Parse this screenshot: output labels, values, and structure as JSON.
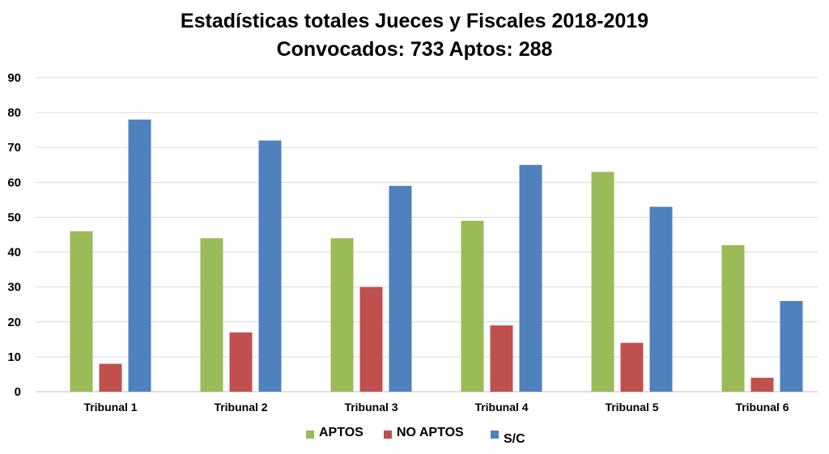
{
  "chart_data": {
    "type": "bar",
    "title": "Estadísticas totales Jueces y Fiscales 2018-2019",
    "subtitle": "Convocados: 733 Aptos:  288",
    "categories": [
      "Tribunal 1",
      "Tribunal 2",
      "Tribunal 3",
      "Tribunal 4",
      "Tribunal 5",
      "Tribunal 6"
    ],
    "series": [
      {
        "name": "APTOS",
        "color": "#9BBB59",
        "values": [
          46,
          44,
          44,
          49,
          63,
          42
        ]
      },
      {
        "name": "NO APTOS",
        "color": "#C0504D",
        "values": [
          8,
          17,
          30,
          19,
          14,
          4
        ]
      },
      {
        "name": "S/C",
        "color": "#4F81BD",
        "values": [
          78,
          72,
          59,
          65,
          53,
          26
        ]
      }
    ],
    "ylim": [
      0,
      90
    ],
    "yticks": [
      0,
      10,
      20,
      30,
      40,
      50,
      60,
      70,
      80,
      90
    ],
    "grid": true,
    "legend": "bottom"
  }
}
